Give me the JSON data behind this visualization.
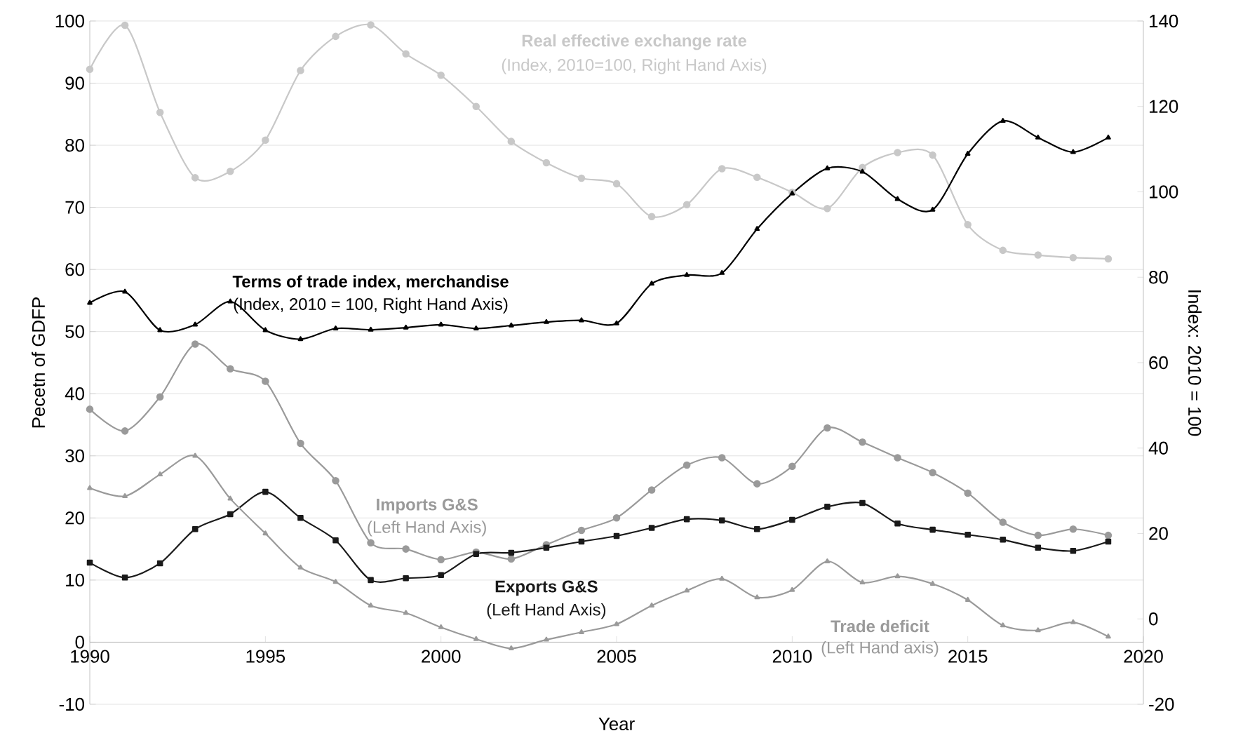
{
  "chart_data": {
    "type": "line",
    "xlabel": "Year",
    "ylabel": "Pecetn of GDFP",
    "y2label": "Index: 2010 = 100",
    "x": [
      1990,
      1991,
      1992,
      1993,
      1994,
      1995,
      1996,
      1997,
      1998,
      1999,
      2000,
      2001,
      2002,
      2003,
      2004,
      2005,
      2006,
      2007,
      2008,
      2009,
      2010,
      2011,
      2012,
      2013,
      2014,
      2015,
      2016,
      2017,
      2018,
      2019
    ],
    "series": [
      {
        "name": "Real effective exchange rate",
        "color": "#c8c8c8",
        "axis": "y2",
        "marker": "circle",
        "values": [
          128.7,
          139,
          118.6,
          103.3,
          104.8,
          112.1,
          128.4,
          136.4,
          139.1,
          132.3,
          127.3,
          120,
          111.8,
          106.8,
          103.2,
          101.9,
          94.2,
          97,
          105.4,
          103.4,
          99.9,
          96.1,
          105.7,
          109.2,
          108.6,
          92.3,
          86.3,
          85.2,
          84.6,
          84.3
        ]
      },
      {
        "name": "Terms of trade index, merchandise",
        "color": "#000000",
        "axis": "y2",
        "marker": "triangle",
        "values": [
          74,
          76.6,
          67.6,
          68.9,
          74.3,
          67.6,
          65.5,
          68,
          67.7,
          68.2,
          68.9,
          68,
          68.7,
          69.5,
          69.9,
          69.2,
          78.5,
          80.5,
          81,
          91.3,
          99.6,
          105.5,
          104.7,
          98.3,
          95.8,
          108.9,
          116.6,
          112.7,
          109.3,
          112.7
        ]
      },
      {
        "name": "Imports G&S",
        "color": "#9a9a9a",
        "marker": "circle",
        "values": [
          37.5,
          34,
          39.5,
          48,
          44,
          42,
          32,
          26,
          16,
          15,
          13.3,
          14.5,
          13.4,
          15.7,
          18,
          20,
          24.5,
          28.5,
          29.7,
          25.5,
          28.3,
          34.5,
          32.2,
          29.7,
          27.3,
          24,
          19.3,
          17.2,
          18.2,
          17.2
        ]
      },
      {
        "name": "Exports G&S",
        "color": "#1a1a1a",
        "marker": "square",
        "values": [
          12.8,
          10.4,
          12.7,
          18.2,
          20.6,
          24.2,
          20,
          16.4,
          10,
          10.3,
          10.8,
          14.2,
          14.4,
          15.2,
          16.2,
          17.1,
          18.4,
          19.8,
          19.6,
          18.2,
          19.7,
          21.8,
          22.4,
          19.1,
          18.1,
          17.3,
          16.5,
          15.2,
          14.7,
          16.2
        ]
      },
      {
        "name": "Trade deficit",
        "color": "#9a9a9a",
        "marker": "triangle",
        "values": [
          24.8,
          23.5,
          27,
          30,
          23.1,
          17.5,
          12,
          9.7,
          5.9,
          4.7,
          2.4,
          0.5,
          -1,
          0.4,
          1.6,
          2.9,
          5.9,
          8.3,
          10.2,
          7.2,
          8.4,
          13,
          9.6,
          10.6,
          9.4,
          6.8,
          2.7,
          1.9,
          3.2,
          0.9
        ]
      }
    ],
    "annotations": [
      "(Index, 2010=100, Right Hand Axis)",
      "(Index, 2010 = 100, Right Hand Axis)",
      "(Left Hand Axis)",
      "(Left  Hand Axis)",
      "(Left Hand axis)"
    ],
    "xlim": [
      1990,
      2020
    ],
    "xticks": [
      1990,
      1995,
      2000,
      2005,
      2010,
      2015,
      2020
    ],
    "ylim": [
      -10,
      100
    ],
    "yticks": [
      -10,
      0,
      10,
      20,
      30,
      40,
      50,
      60,
      70,
      80,
      90,
      100
    ],
    "y2lim": [
      -20,
      140
    ],
    "y2ticks": [
      -20,
      0,
      20,
      40,
      60,
      80,
      100,
      120,
      140
    ],
    "grid": "y",
    "line_style": "solid"
  }
}
